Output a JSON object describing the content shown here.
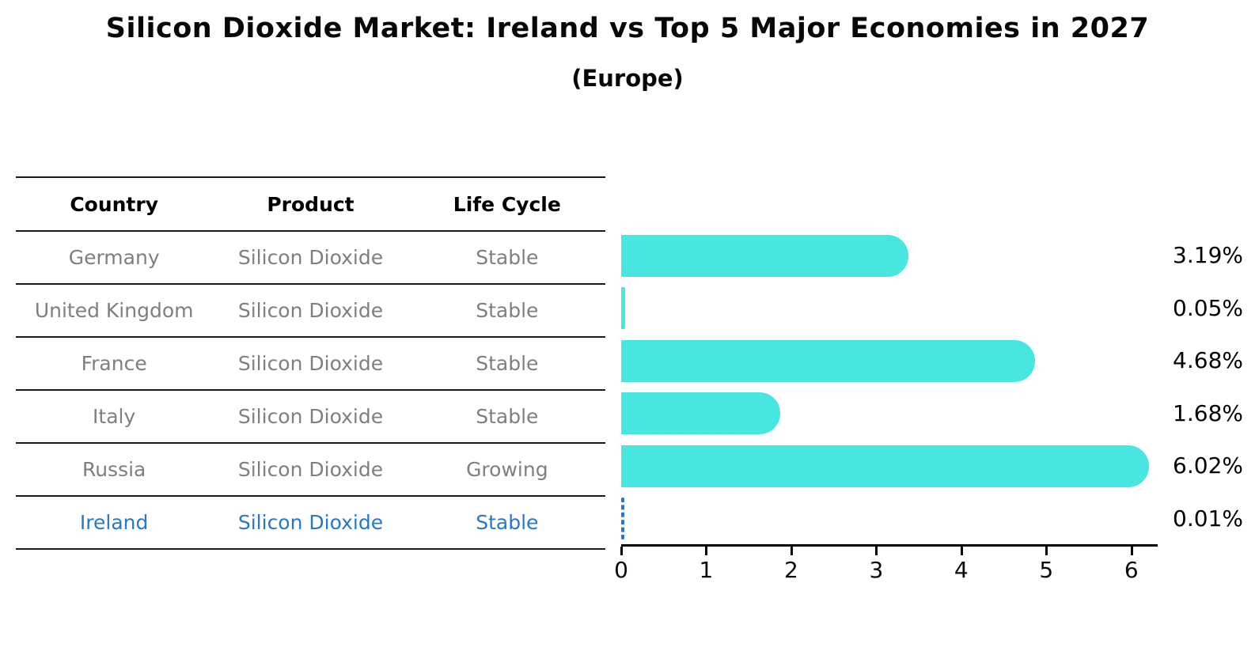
{
  "title": "Silicon Dioxide Market: Ireland vs Top 5 Major Economies in 2027",
  "subtitle": "(Europe)",
  "table": {
    "headers": [
      "Country",
      "Product",
      "Life Cycle"
    ]
  },
  "chart_data": {
    "type": "bar",
    "orientation": "horizontal",
    "title": "Silicon Dioxide Market: Ireland vs Top 5 Major Economies in 2027",
    "subtitle": "(Europe)",
    "categories": [
      "Germany",
      "United Kingdom",
      "France",
      "Italy",
      "Russia",
      "Ireland"
    ],
    "values": [
      3.19,
      0.05,
      4.68,
      1.68,
      6.02,
      0.01
    ],
    "value_labels": [
      "3.19%",
      "0.05%",
      "4.68%",
      "1.68%",
      "6.02%",
      "0.01%"
    ],
    "xlim": [
      0,
      6.3
    ],
    "x_ticks": [
      "0",
      "1",
      "2",
      "3",
      "4",
      "5",
      "6"
    ],
    "grid": false,
    "legend": false,
    "bar_color": "#47e6e0",
    "highlight_color": "#2878ca",
    "rows": [
      {
        "country": "Germany",
        "product": "Silicon Dioxide",
        "life_cycle": "Stable",
        "value": 3.19,
        "value_label": "3.19%",
        "highlighted": false
      },
      {
        "country": "United Kingdom",
        "product": "Silicon Dioxide",
        "life_cycle": "Stable",
        "value": 0.05,
        "value_label": "0.05%",
        "highlighted": false
      },
      {
        "country": "France",
        "product": "Silicon Dioxide",
        "life_cycle": "Stable",
        "value": 4.68,
        "value_label": "4.68%",
        "highlighted": false
      },
      {
        "country": "Italy",
        "product": "Silicon Dioxide",
        "life_cycle": "Stable",
        "value": 1.68,
        "value_label": "1.68%",
        "highlighted": false
      },
      {
        "country": "Russia",
        "product": "Silicon Dioxide",
        "life_cycle": "Growing",
        "value": 6.02,
        "value_label": "6.02%",
        "highlighted": false
      },
      {
        "country": "Ireland",
        "product": "Silicon Dioxide",
        "life_cycle": "Stable",
        "value": 0.01,
        "value_label": "0.01%",
        "highlighted": true
      }
    ]
  }
}
